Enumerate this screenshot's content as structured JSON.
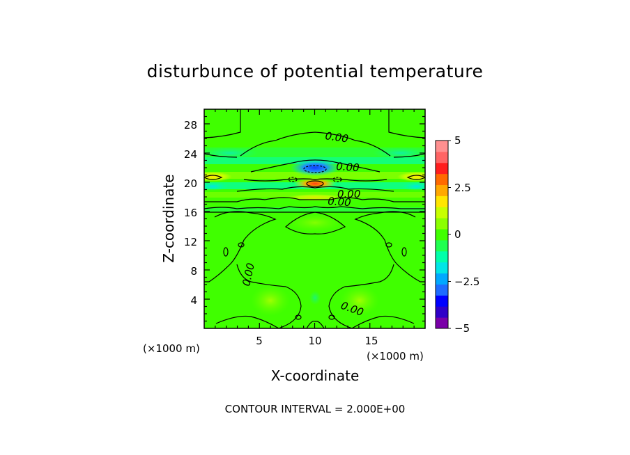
{
  "chart_data": {
    "type": "heatmap",
    "title": "disturbunce of potential temperature",
    "xlabel": "X-coordinate",
    "ylabel": "Z-coordinate",
    "x_unit": "(×1000 m)",
    "y_unit": "(×1000 m)",
    "xlim": [
      0,
      20
    ],
    "ylim": [
      0,
      30
    ],
    "x_ticks": [
      "5",
      "10",
      "15"
    ],
    "y_ticks": [
      "4",
      "8",
      "12",
      "16",
      "20",
      "24",
      "28"
    ],
    "colorbar": {
      "range": [
        -5,
        5
      ],
      "tick_labels": [
        "5",
        "2.5",
        "0",
        "-2.5",
        "-5"
      ],
      "colors": [
        "#7a00a8",
        "#3000c8",
        "#0000ff",
        "#1e6cff",
        "#00a8ff",
        "#00e6e6",
        "#00ffaa",
        "#20ff50",
        "#40ff00",
        "#8cff00",
        "#c8ff00",
        "#ffe600",
        "#ffa800",
        "#ff6a00",
        "#ff1e1e",
        "#ff6464",
        "#ff9090"
      ]
    },
    "contour_labels": [
      "0.00",
      "0.00",
      "0.00",
      "0.00",
      "0.00",
      "0.00"
    ],
    "contour_interval_text": "CONTOUR INTERVAL = 2.000E+00",
    "features": [
      {
        "x": 10,
        "z": 21.8,
        "value": -2.5
      },
      {
        "x": 10,
        "z": 19.7,
        "value": 4
      },
      {
        "x": 0.9,
        "z": 20.7,
        "value": 2
      },
      {
        "x": 19.1,
        "z": 20.7,
        "value": 2
      },
      {
        "x": 0.8,
        "z": 19.2,
        "value": -1.5
      },
      {
        "x": 19.2,
        "z": 19.2,
        "value": -1.5
      },
      {
        "x": 6,
        "z": 3.9,
        "value": 0.8
      },
      {
        "x": 14,
        "z": 3.9,
        "value": 0.8
      }
    ]
  }
}
